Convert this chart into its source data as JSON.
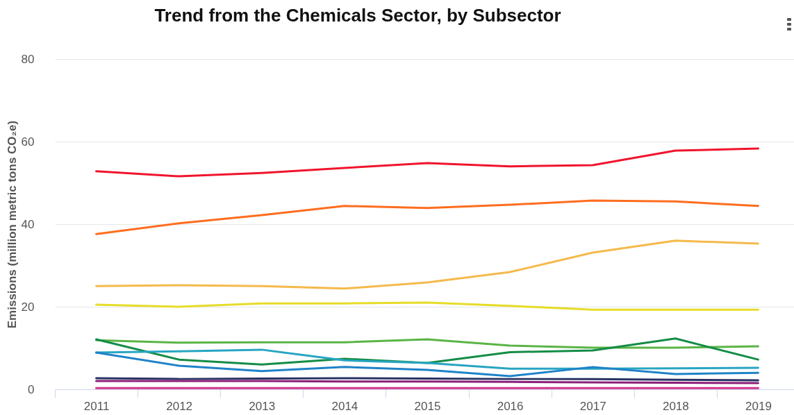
{
  "chart_data": {
    "type": "line",
    "title": "Trend from the Chemicals Sector, by Subsector",
    "ylabel": "Emissions (million metric tons CO₂e)",
    "categories": [
      "2011",
      "2012",
      "2013",
      "2014",
      "2015",
      "2016",
      "2017",
      "2018",
      "2019"
    ],
    "ylim": [
      0,
      80
    ],
    "yticks": [
      0,
      20,
      40,
      60,
      80
    ],
    "grid": "y",
    "series": [
      {
        "color": "#f0142d",
        "values": [
          52.8,
          51.6,
          52.4,
          53.6,
          54.8,
          54,
          54.3,
          57.8,
          58.3
        ]
      },
      {
        "color": "#ff6d1f",
        "values": [
          37.6,
          40.2,
          42.2,
          44.4,
          43.9,
          44.7,
          45.7,
          45.5,
          44.4
        ]
      },
      {
        "color": "#f5b94b",
        "values": [
          25,
          25.2,
          25,
          24.4,
          25.9,
          28.4,
          33.1,
          36,
          35.3
        ]
      },
      {
        "color": "#e6dc28",
        "values": [
          20.5,
          20,
          20.8,
          20.8,
          21,
          20.2,
          19.3,
          19.3,
          19.3
        ]
      },
      {
        "color": "#5ab446",
        "values": [
          11.9,
          11.3,
          11.4,
          11.4,
          12.1,
          10.6,
          10.1,
          10.1,
          10.4
        ]
      },
      {
        "color": "#148c46",
        "values": [
          12.1,
          7.2,
          6,
          7.4,
          6.4,
          9,
          9.4,
          12.3,
          7.2
        ]
      },
      {
        "color": "#28a5c3",
        "values": [
          8.9,
          9.2,
          9.6,
          7,
          6.4,
          5,
          5,
          5.1,
          5.2
        ]
      },
      {
        "color": "#1e82c8",
        "values": [
          8.9,
          5.7,
          4.4,
          5.4,
          4.7,
          3.2,
          5.4,
          3.7,
          4
        ]
      },
      {
        "color": "#283264",
        "values": [
          2.7,
          2.5,
          2.6,
          2.7,
          2.6,
          2.5,
          2.5,
          2.3,
          2.2
        ]
      },
      {
        "color": "#8c1e78",
        "values": [
          2,
          2,
          2,
          1.9,
          1.9,
          1.8,
          1.7,
          1.6,
          1.5
        ]
      },
      {
        "color": "#d2328c",
        "values": [
          0.3,
          0.3,
          0.3,
          0.3,
          0.3,
          0.3,
          0.3,
          0.3,
          0.3
        ]
      }
    ]
  }
}
